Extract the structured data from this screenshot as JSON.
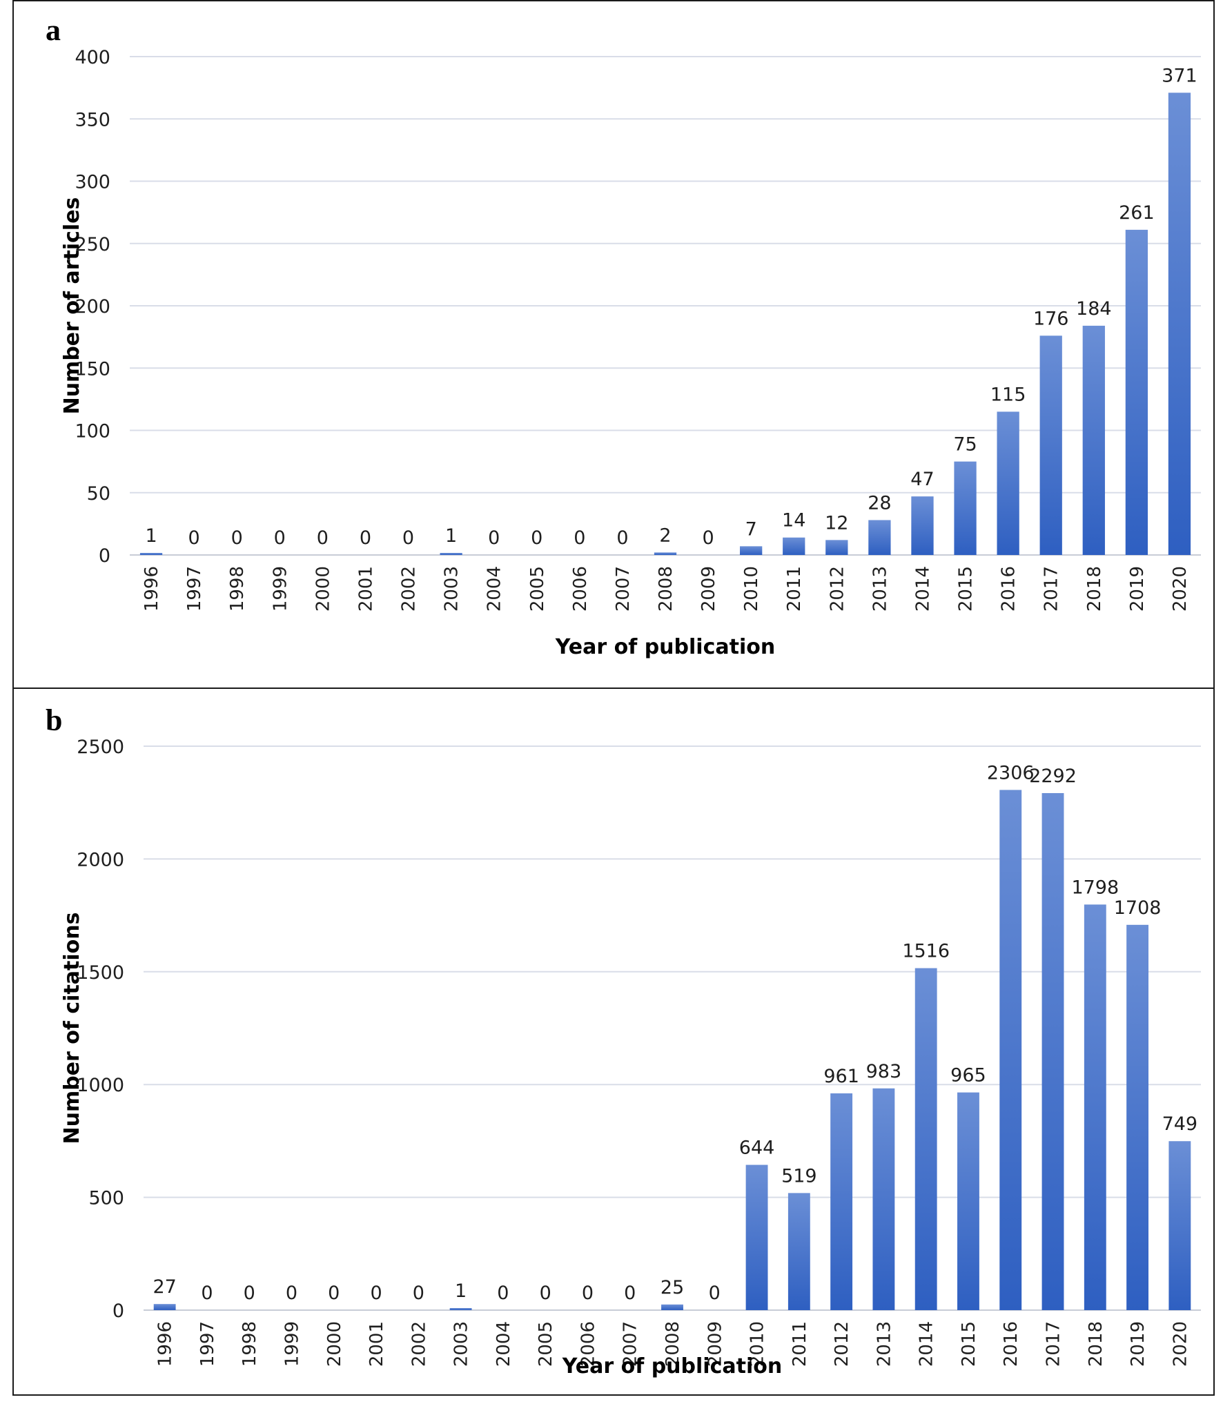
{
  "chart_data": [
    {
      "panel_label": "a",
      "type": "bar",
      "categories": [
        "1996",
        "1997",
        "1998",
        "1999",
        "2000",
        "2001",
        "2002",
        "2003",
        "2004",
        "2005",
        "2006",
        "2007",
        "2008",
        "2009",
        "2010",
        "2011",
        "2012",
        "2013",
        "2014",
        "2015",
        "2016",
        "2017",
        "2018",
        "2019",
        "2020"
      ],
      "values": [
        1,
        0,
        0,
        0,
        0,
        0,
        0,
        1,
        0,
        0,
        0,
        0,
        2,
        0,
        7,
        14,
        12,
        28,
        47,
        75,
        115,
        176,
        184,
        261,
        371
      ],
      "data_labels": [
        "1",
        "0",
        "0",
        "0",
        "0",
        "0",
        "0",
        "1",
        "0",
        "0",
        "0",
        "0",
        "2",
        "0",
        "7",
        "14",
        "12",
        "28",
        "47",
        "75",
        "115",
        "176",
        "184",
        "261",
        "371"
      ],
      "xlabel": "Year of publication",
      "ylabel": "Number of articles",
      "ylim": [
        0,
        400
      ],
      "yticks": [
        "0",
        "50",
        "100",
        "150",
        "200",
        "250",
        "300",
        "350",
        "400"
      ],
      "grid": "horizontal",
      "legend": "none",
      "bar_color_top": "#6b8fd6",
      "bar_color_bottom": "#2e5fc1",
      "grid_color": "#d9dde8"
    },
    {
      "panel_label": "b",
      "type": "bar",
      "categories": [
        "1996",
        "1997",
        "1998",
        "1999",
        "2000",
        "2001",
        "2002",
        "2003",
        "2004",
        "2005",
        "2006",
        "2007",
        "2008",
        "2009",
        "2010",
        "2011",
        "2012",
        "2013",
        "2014",
        "2015",
        "2016",
        "2017",
        "2018",
        "2019",
        "2020"
      ],
      "values": [
        27,
        0,
        0,
        0,
        0,
        0,
        0,
        1,
        0,
        0,
        0,
        0,
        25,
        0,
        644,
        519,
        961,
        983,
        1516,
        965,
        2306,
        2292,
        1798,
        1708,
        749
      ],
      "data_labels": [
        "27",
        "0",
        "0",
        "0",
        "0",
        "0",
        "0",
        "1",
        "0",
        "0",
        "0",
        "0",
        "25",
        "0",
        "644",
        "519",
        "961",
        "983",
        "1516",
        "965",
        "2306",
        "2292",
        "1798",
        "1708",
        "749"
      ],
      "xlabel": "Year of publication",
      "ylabel": "Number of citations",
      "ylim": [
        0,
        2500
      ],
      "yticks": [
        "0",
        "500",
        "1000",
        "1500",
        "2000",
        "2500"
      ],
      "grid": "horizontal",
      "legend": "none",
      "bar_color_top": "#6b8fd6",
      "bar_color_bottom": "#2e5fc1",
      "grid_color": "#d9dde8"
    }
  ]
}
